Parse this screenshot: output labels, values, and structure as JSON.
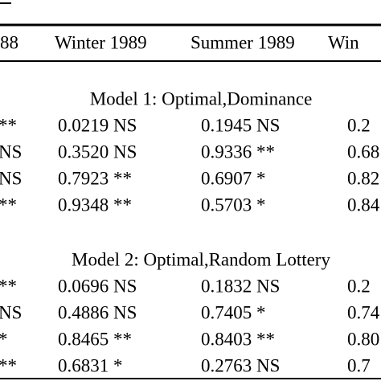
{
  "header": {
    "columns": [
      "88",
      "Winter 1989",
      "Summer 1989",
      "Win"
    ]
  },
  "sections": [
    {
      "title": "Model 1: Optimal,Dominance",
      "rows": [
        [
          "**",
          "0.0219 NS",
          "0.1945 NS",
          "0.2"
        ],
        [
          "NS",
          "0.3520 NS",
          "0.9336 **",
          "0.68"
        ],
        [
          "NS",
          "0.7923 **",
          "0.6907 *",
          "0.82"
        ],
        [
          "**",
          "0.9348 **",
          "0.5703 *",
          "0.84"
        ]
      ]
    },
    {
      "title": "Model 2: Optimal,Random Lottery",
      "rows": [
        [
          "**",
          "0.0696 NS",
          "0.1832 NS",
          "0.2"
        ],
        [
          "NS",
          "0.4886 NS",
          "0.7405 *",
          "0.74"
        ],
        [
          "*",
          "0.8465 **",
          "0.8403 **",
          "0.80"
        ],
        [
          "**",
          "0.6831 *",
          "0.2763 NS",
          "0.7"
        ]
      ]
    }
  ]
}
